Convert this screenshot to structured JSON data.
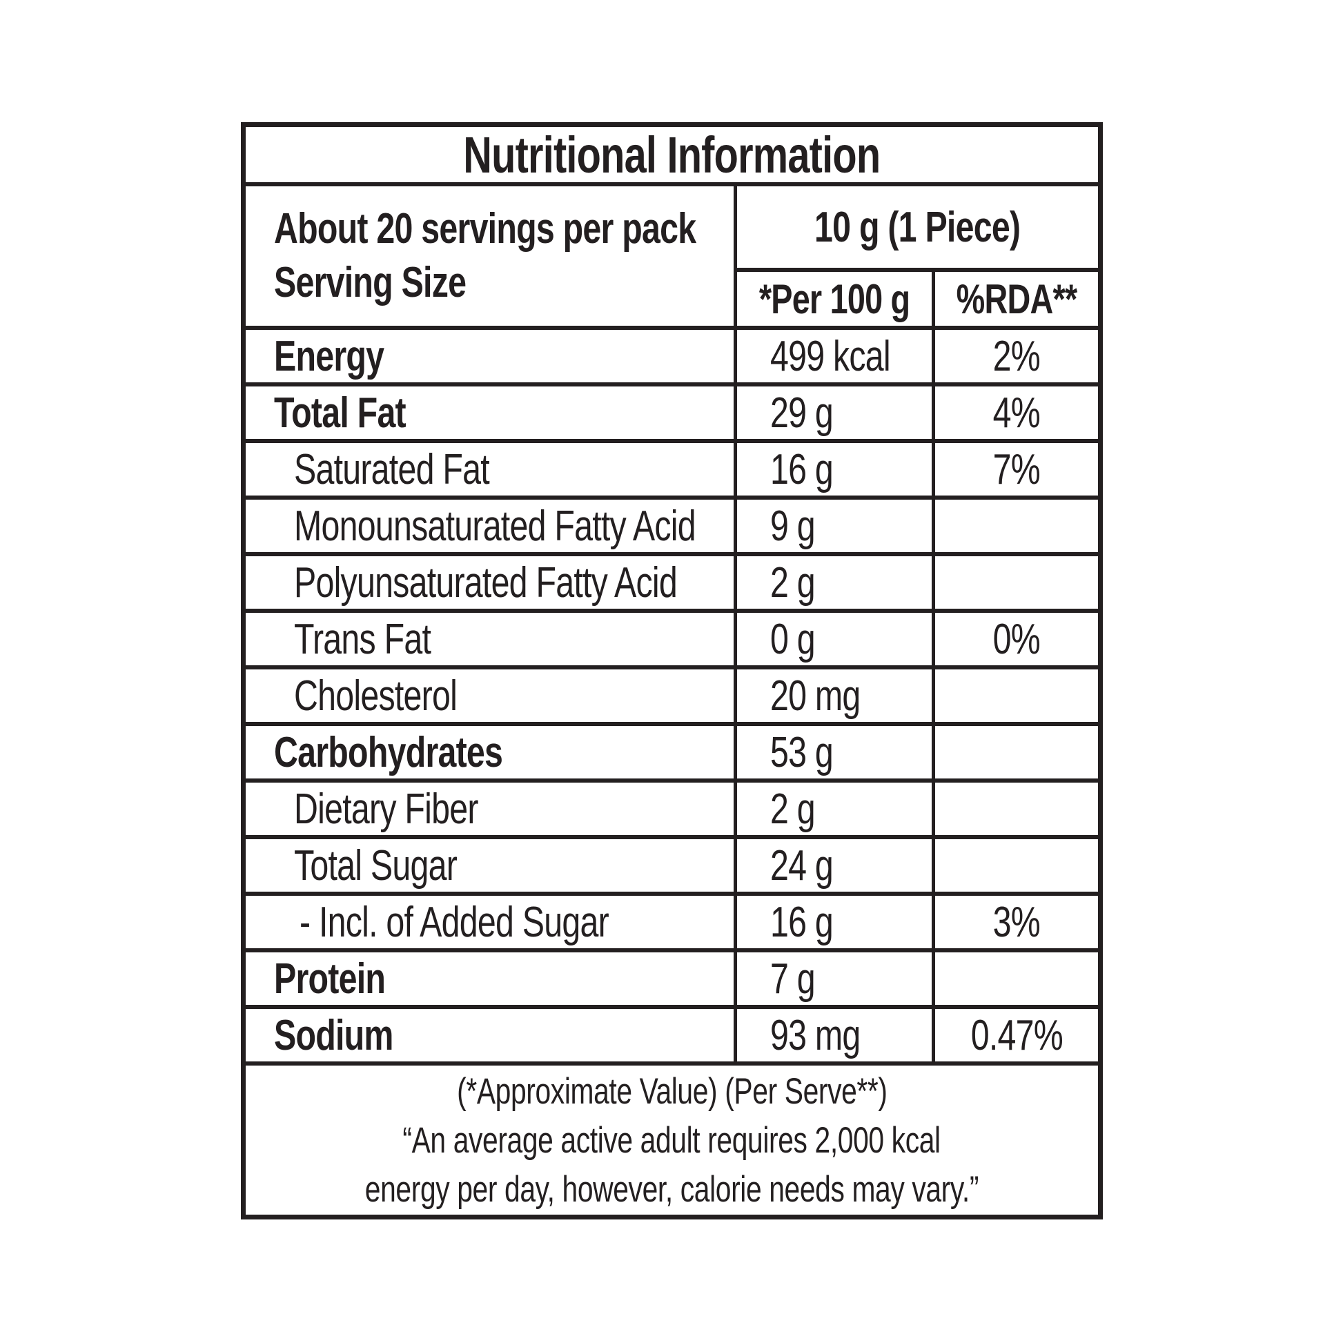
{
  "colors": {
    "background": "#ffffff",
    "text": "#231f20",
    "border": "#231f20"
  },
  "title": "Nutritional Information",
  "header": {
    "servings_per_pack": "About 20 servings per pack",
    "serving_size_label": "Serving Size",
    "serving_size_value": "10 g (1 Piece)",
    "col_per_100g": "*Per 100 g",
    "col_rda": "%RDA**"
  },
  "rows": [
    {
      "label": "Energy",
      "value": "499 kcal",
      "rda": "2%"
    },
    {
      "label": "Total Fat",
      "value": "29 g",
      "rda": "4%"
    },
    {
      "label": "Saturated Fat",
      "value": "16 g",
      "rda": "7%"
    },
    {
      "label": "Monounsaturated Fatty Acid",
      "value": "9 g",
      "rda": ""
    },
    {
      "label": "Polyunsaturated Fatty Acid",
      "value": "2 g",
      "rda": ""
    },
    {
      "label": "Trans Fat",
      "value": "0 g",
      "rda": "0%"
    },
    {
      "label": "Cholesterol",
      "value": "20 mg",
      "rda": ""
    },
    {
      "label": "Carbohydrates",
      "value": "53 g",
      "rda": ""
    },
    {
      "label": "Dietary Fiber",
      "value": "2 g",
      "rda": ""
    },
    {
      "label": "Total Sugar",
      "value": "24 g",
      "rda": ""
    },
    {
      "label": "- Incl. of Added Sugar",
      "value": "16 g",
      "rda": "3%"
    },
    {
      "label": "Protein",
      "value": "7 g",
      "rda": ""
    },
    {
      "label": "Sodium",
      "value": "93 mg",
      "rda": "0.47%"
    }
  ],
  "footer": {
    "line1": "(*Approximate Value) (Per Serve**)",
    "line2": "“An average active adult requires 2,000 kcal",
    "line3": "energy per day, however, calorie needs may vary.”"
  }
}
